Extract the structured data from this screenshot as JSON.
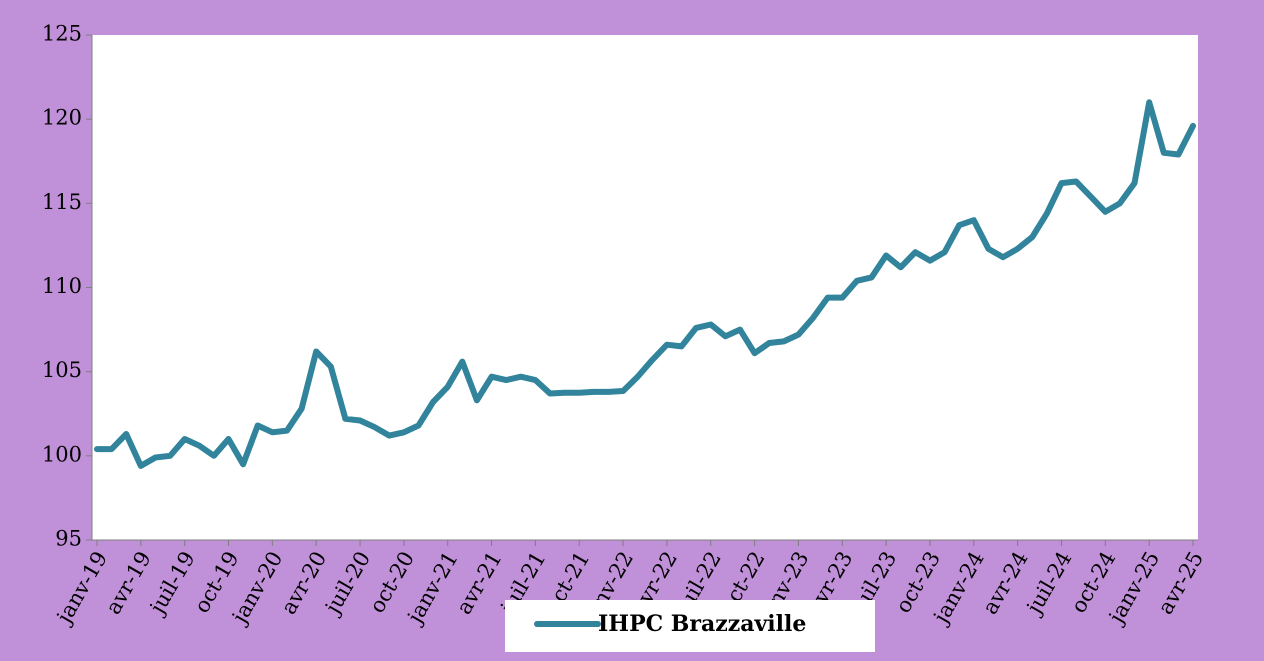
{
  "chart_data": {
    "type": "line",
    "categories": [
      "janv-19",
      null,
      null,
      "avr-19",
      null,
      null,
      "juil-19",
      null,
      null,
      "oct-19",
      null,
      null,
      "janv-20",
      null,
      null,
      "avr-20",
      null,
      null,
      "juil-20",
      null,
      null,
      "oct-20",
      null,
      null,
      "janv-21",
      null,
      null,
      "avr-21",
      null,
      null,
      "juil-21",
      null,
      null,
      "oct-21",
      null,
      null,
      "janv-22",
      null,
      null,
      "avr-22",
      null,
      null,
      "juil-22",
      null,
      null,
      "oct-22",
      null,
      null,
      "janv-23",
      null,
      null,
      "avr-23",
      null,
      null,
      "juil-23",
      null,
      null,
      "oct-23",
      null,
      null,
      "janv-24",
      null,
      null,
      "avr-24",
      null,
      null,
      "juil-24",
      null,
      null,
      "oct-24",
      null,
      null,
      "janv-25",
      null,
      null,
      "avr-25"
    ],
    "series": [
      {
        "name": "IHPC Brazzaville",
        "color": "#31849b",
        "values": [
          100.4,
          100.4,
          101.3,
          99.4,
          99.9,
          100.0,
          101.0,
          100.6,
          100.0,
          101.0,
          99.5,
          101.8,
          101.4,
          101.5,
          102.8,
          106.2,
          105.3,
          102.2,
          102.1,
          101.7,
          101.2,
          101.4,
          101.8,
          103.2,
          104.1,
          105.6,
          103.3,
          104.7,
          104.5,
          104.7,
          104.5,
          103.7,
          103.75,
          103.75,
          103.8,
          103.8,
          103.85,
          104.7,
          105.7,
          106.6,
          106.5,
          107.6,
          107.8,
          107.1,
          107.5,
          106.1,
          106.7,
          106.8,
          107.2,
          108.2,
          109.4,
          109.4,
          110.4,
          110.6,
          111.9,
          111.2,
          112.1,
          111.6,
          112.1,
          113.7,
          114.0,
          112.3,
          111.8,
          112.3,
          113.0,
          114.4,
          116.2,
          116.3,
          115.4,
          114.5,
          115.0,
          116.2,
          121.0,
          118.0,
          117.9,
          119.6
        ]
      }
    ],
    "ylim": [
      95,
      125
    ],
    "yticks": [
      95,
      100,
      105,
      110,
      115,
      120,
      125
    ],
    "grid": false,
    "legend": "bottom"
  }
}
